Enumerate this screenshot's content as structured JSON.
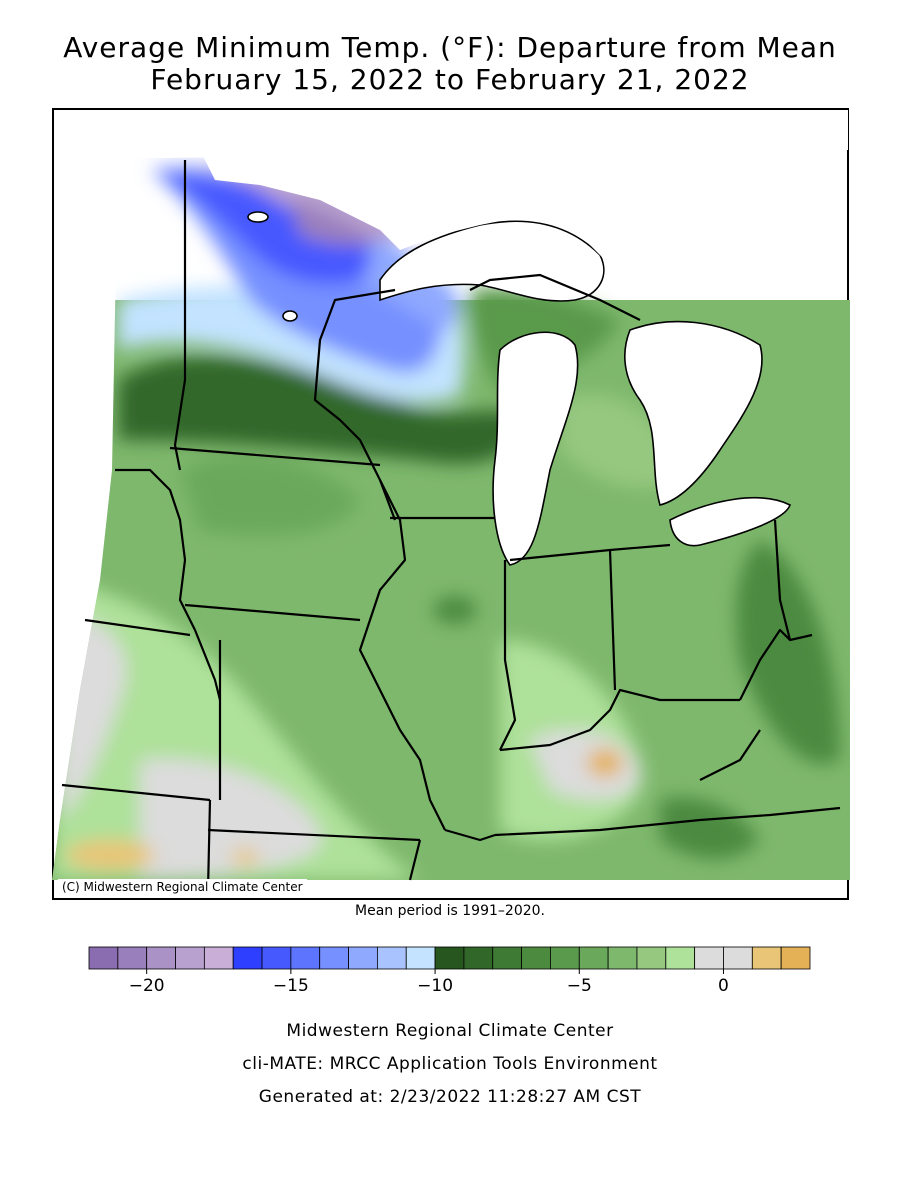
{
  "header": {
    "title_line1": "Average Minimum Temp. (°F): Departure from Mean",
    "title_line2": "February 15, 2022 to February 21, 2022"
  },
  "map": {
    "credit": "(C) Midwestern Regional Climate Center",
    "mean_period": "Mean period is 1991–2020.",
    "lake_color": "#ffffff",
    "border_color": "#000000"
  },
  "legend": {
    "colors": [
      "#8a6db0",
      "#9a7fbd",
      "#ab92c6",
      "#b9a1cf",
      "#c9afd8",
      "#2e3fff",
      "#4659ff",
      "#5d74ff",
      "#7690ff",
      "#8fa9ff",
      "#a9c3ff",
      "#c3e3ff",
      "#27561f",
      "#32672a",
      "#3f7a35",
      "#4c8a40",
      "#5a9a4c",
      "#6aa95b",
      "#7eb86d",
      "#96c880",
      "#aee19a",
      "#dcdcdc",
      "#dcdcdc",
      "#e9c577",
      "#e5b156"
    ],
    "ticks": [
      {
        "value": -20,
        "label": "−20"
      },
      {
        "value": -15,
        "label": "−15"
      },
      {
        "value": -10,
        "label": "−10"
      },
      {
        "value": -5,
        "label": "−5"
      },
      {
        "value": 0,
        "label": "0"
      }
    ]
  },
  "footer": {
    "line1": "Midwestern Regional Climate Center",
    "line2": "cli-MATE: MRCC Application Tools Environment",
    "line3": "Generated at: 2/23/2022 11:28:27 AM CST"
  }
}
